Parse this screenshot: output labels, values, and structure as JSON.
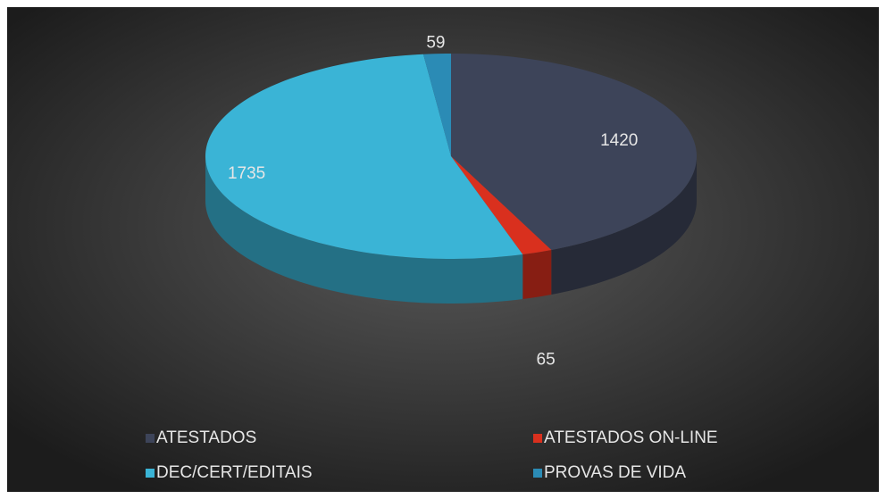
{
  "chart_data": {
    "type": "pie3d",
    "categories": [
      "ATESTADOS",
      "ATESTADOS ON-LINE",
      "DEC/CERT/EDITAIS",
      "PROVAS DE VIDA"
    ],
    "values": [
      1420,
      65,
      1735,
      59
    ],
    "colors": [
      "#3d4459",
      "#d9301e",
      "#3ab4d6",
      "#2b8bb5"
    ],
    "legend": "bottom"
  }
}
